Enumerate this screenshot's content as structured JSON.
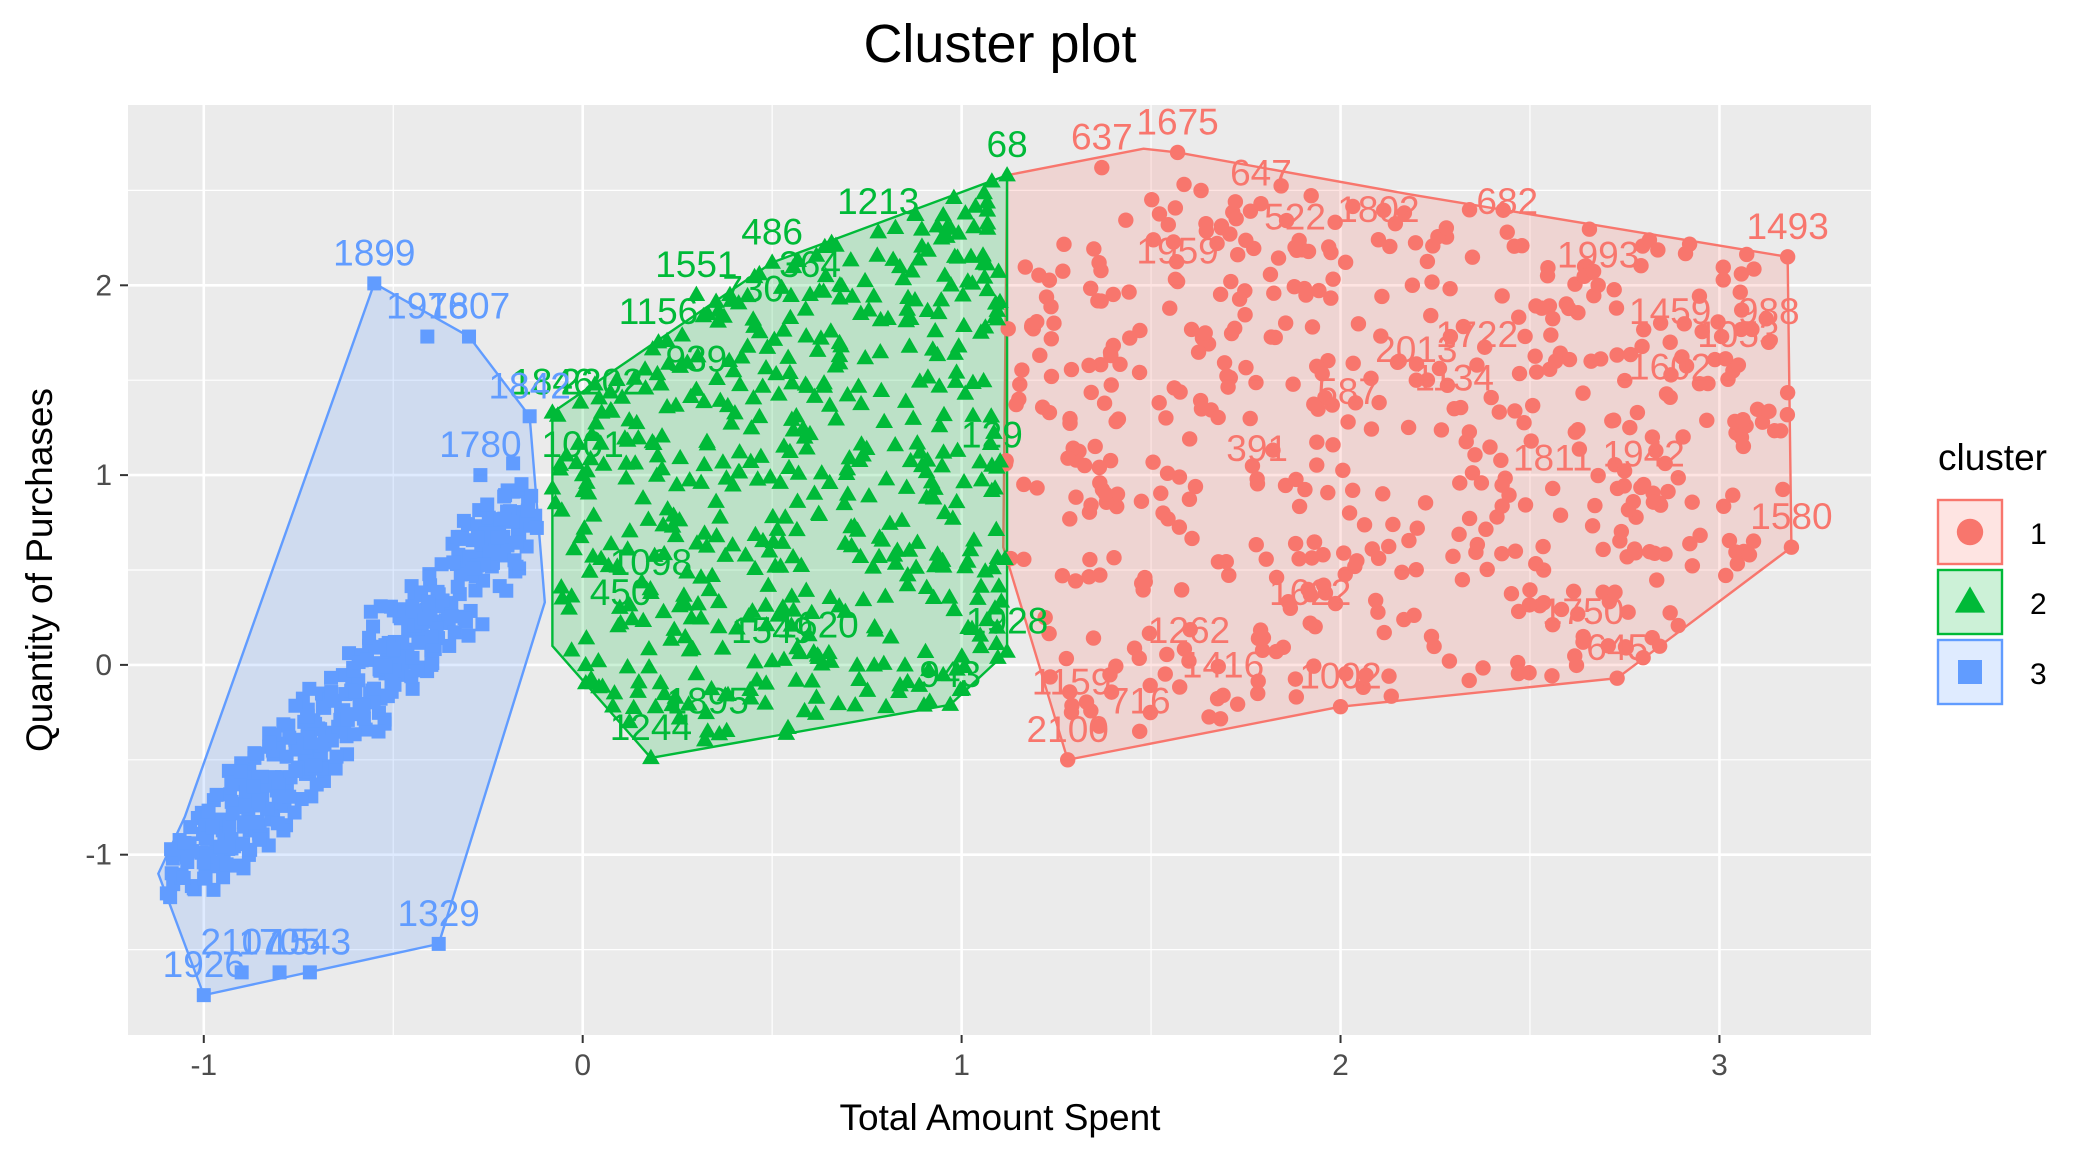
{
  "chart_data": {
    "type": "scatter",
    "title": "Cluster plot",
    "xlabel": "Total Amount Spent",
    "ylabel": "Quantity of Purchases",
    "xlim": [
      -1.2,
      3.4
    ],
    "ylim": [
      -1.95,
      2.95
    ],
    "x_ticks": [
      -1,
      0,
      1,
      2,
      3
    ],
    "y_ticks": [
      -1,
      0,
      1,
      2
    ],
    "grid": true,
    "legend_position": "right",
    "legend_title": "cluster",
    "series": [
      {
        "name": "1",
        "color": "#F8766D",
        "marker": "circle",
        "hull": [
          [
            1.12,
            2.58
          ],
          [
            1.48,
            2.72
          ],
          [
            1.57,
            2.7
          ],
          [
            2.18,
            2.48
          ],
          [
            3.18,
            2.15
          ],
          [
            3.19,
            0.62
          ],
          [
            2.73,
            -0.07
          ],
          [
            2.0,
            -0.22
          ],
          [
            1.28,
            -0.5
          ],
          [
            1.11,
            0.62
          ]
        ],
        "labeled_points": [
          {
            "label": "1493",
            "x": 3.18,
            "y": 2.15
          },
          {
            "label": "1580",
            "x": 3.19,
            "y": 0.62
          },
          {
            "label": "645",
            "x": 2.73,
            "y": -0.07
          },
          {
            "label": "1750",
            "x": 2.64,
            "y": 0.12
          },
          {
            "label": "1002",
            "x": 2.0,
            "y": -0.22
          },
          {
            "label": "2100",
            "x": 1.28,
            "y": -0.5
          },
          {
            "label": "637",
            "x": 1.37,
            "y": 2.62
          },
          {
            "label": "1675",
            "x": 1.57,
            "y": 2.7
          },
          {
            "label": "647",
            "x": 1.79,
            "y": 2.43
          },
          {
            "label": "682",
            "x": 2.44,
            "y": 2.28
          },
          {
            "label": "1993",
            "x": 2.68,
            "y": 2.0
          },
          {
            "label": "1802",
            "x": 2.1,
            "y": 2.24
          },
          {
            "label": "522",
            "x": 1.88,
            "y": 2.2
          },
          {
            "label": "1959",
            "x": 1.57,
            "y": 2.02
          },
          {
            "label": "1459",
            "x": 2.87,
            "y": 1.7
          },
          {
            "label": "988",
            "x": 3.13,
            "y": 1.7
          },
          {
            "label": "1053",
            "x": 3.05,
            "y": 1.58
          },
          {
            "label": "1602",
            "x": 2.87,
            "y": 1.41
          },
          {
            "label": "1722",
            "x": 2.36,
            "y": 1.58
          },
          {
            "label": "1942",
            "x": 2.8,
            "y": 0.95
          },
          {
            "label": "587",
            "x": 2.02,
            "y": 1.28
          },
          {
            "label": "391",
            "x": 1.78,
            "y": 0.98
          },
          {
            "label": "1159",
            "x": 1.29,
            "y": -0.25
          },
          {
            "label": "716",
            "x": 1.47,
            "y": -0.35
          },
          {
            "label": "1416",
            "x": 1.69,
            "y": -0.16
          },
          {
            "label": "1262",
            "x": 1.6,
            "y": 0.02
          },
          {
            "label": "1622",
            "x": 1.92,
            "y": 0.22
          },
          {
            "label": "2013",
            "x": 2.2,
            "y": 1.5
          },
          {
            "label": "1134",
            "x": 2.3,
            "y": 1.35
          },
          {
            "label": "1811",
            "x": 2.56,
            "y": 0.93
          }
        ]
      },
      {
        "name": "2",
        "color": "#00BA38",
        "marker": "triangle",
        "hull": [
          [
            -0.08,
            1.33
          ],
          [
            0.5,
            2.12
          ],
          [
            1.12,
            2.58
          ],
          [
            1.12,
            0.07
          ],
          [
            0.97,
            -0.21
          ],
          [
            0.18,
            -0.49
          ],
          [
            -0.08,
            0.1
          ]
        ],
        "labeled_points": [
          {
            "label": "68",
            "x": 1.12,
            "y": 2.58
          },
          {
            "label": "1213",
            "x": 0.78,
            "y": 2.28
          },
          {
            "label": "486",
            "x": 0.5,
            "y": 2.12
          },
          {
            "label": "1244",
            "x": 0.18,
            "y": -0.49
          },
          {
            "label": "943",
            "x": 0.97,
            "y": -0.21
          },
          {
            "label": "1928",
            "x": 1.12,
            "y": 0.07
          },
          {
            "label": "1895",
            "x": 0.33,
            "y": -0.35
          },
          {
            "label": "1098",
            "x": 0.18,
            "y": 0.38
          },
          {
            "label": "450",
            "x": 0.1,
            "y": 0.22
          },
          {
            "label": "1846",
            "x": -0.08,
            "y": 1.33
          },
          {
            "label": "2202",
            "x": 0.05,
            "y": 1.33
          },
          {
            "label": "1001",
            "x": 0.0,
            "y": 1.0
          },
          {
            "label": "1551",
            "x": 0.3,
            "y": 1.95
          },
          {
            "label": "364",
            "x": 0.6,
            "y": 1.95
          },
          {
            "label": "730",
            "x": 0.45,
            "y": 1.82
          },
          {
            "label": "939",
            "x": 0.3,
            "y": 1.45
          },
          {
            "label": "1156",
            "x": 0.2,
            "y": 1.7
          },
          {
            "label": "129",
            "x": 1.08,
            "y": 1.05
          },
          {
            "label": "1620",
            "x": 0.62,
            "y": 0.05
          },
          {
            "label": "1549",
            "x": 0.5,
            "y": 0.02
          }
        ]
      },
      {
        "name": "3",
        "color": "#619CFF",
        "marker": "square",
        "hull": [
          [
            -0.55,
            2.01
          ],
          [
            -0.3,
            1.73
          ],
          [
            -0.14,
            1.31
          ],
          [
            -0.1,
            0.33
          ],
          [
            -0.38,
            -1.47
          ],
          [
            -1.0,
            -1.74
          ],
          [
            -1.12,
            -1.1
          ],
          [
            -1.05,
            -0.8
          ]
        ],
        "labeled_points": [
          {
            "label": "1899",
            "x": -0.55,
            "y": 2.01
          },
          {
            "label": "1807",
            "x": -0.3,
            "y": 1.73
          },
          {
            "label": "1976",
            "x": -0.41,
            "y": 1.73
          },
          {
            "label": "1842",
            "x": -0.14,
            "y": 1.31
          },
          {
            "label": "1780",
            "x": -0.27,
            "y": 1.0
          },
          {
            "label": "1329",
            "x": -0.38,
            "y": -1.47
          },
          {
            "label": "1543",
            "x": -0.72,
            "y": -1.62
          },
          {
            "label": "1705",
            "x": -0.8,
            "y": -1.62
          },
          {
            "label": "2107",
            "x": -0.9,
            "y": -1.62
          },
          {
            "label": "1926",
            "x": -1.0,
            "y": -1.74
          }
        ]
      }
    ]
  }
}
